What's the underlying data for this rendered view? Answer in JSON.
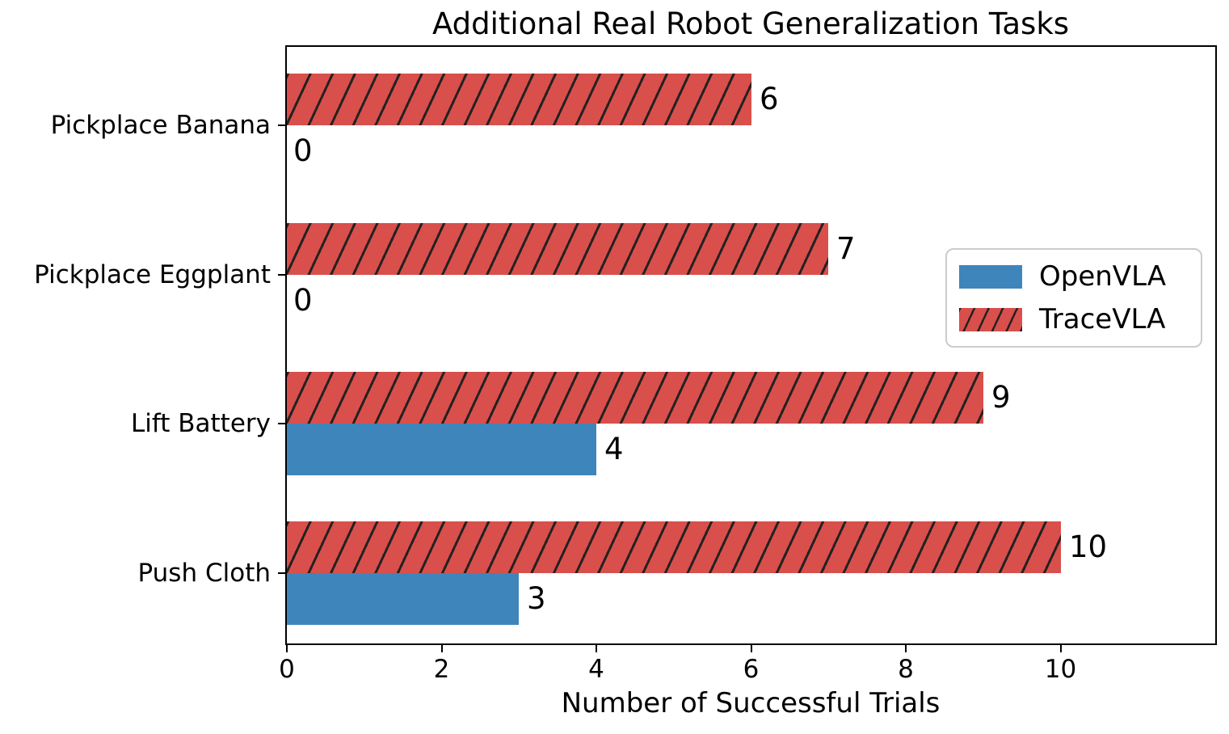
{
  "chart_data": {
    "type": "bar",
    "orientation": "horizontal",
    "title": "Additional Real Robot Generalization Tasks",
    "xlabel": "Number of Successful Trials",
    "categories": [
      "Pickplace Banana",
      "Pickplace Eggplant",
      "Lift Battery",
      "Push Cloth"
    ],
    "series": [
      {
        "name": "OpenVLA",
        "values": [
          0,
          0,
          4,
          3
        ],
        "color": "#3e85bc",
        "hatch": false
      },
      {
        "name": "TraceVLA",
        "values": [
          6,
          7,
          9,
          10
        ],
        "color": "#d94f4b",
        "hatch": true
      }
    ],
    "bar_value_labels": {
      "OpenVLA": [
        "0",
        "0",
        "4",
        "3"
      ],
      "TraceVLA": [
        "6",
        "7",
        "9",
        "10"
      ]
    },
    "xlim": [
      0,
      12
    ],
    "xticks": [
      "0",
      "2",
      "4",
      "6",
      "8",
      "10"
    ],
    "grid": false,
    "legend_position": "center-right",
    "hatch_color": "#222222",
    "axis_color": "#000000"
  }
}
